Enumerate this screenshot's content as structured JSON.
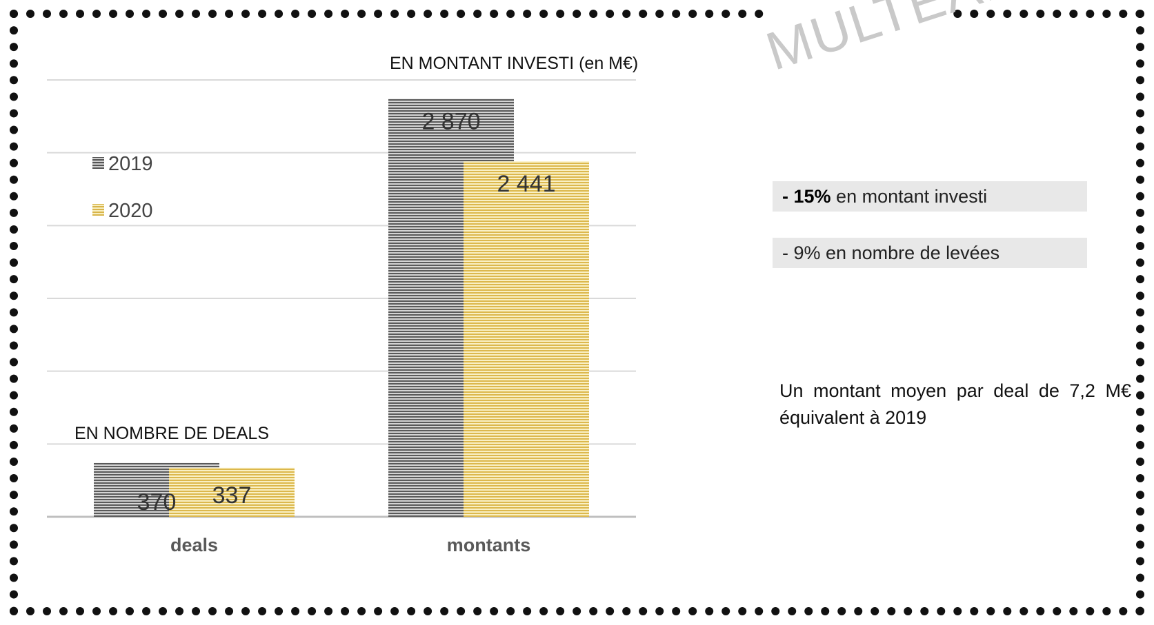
{
  "colors": {
    "series_2019": "#7d7d7d",
    "series_2020": "#f2d27a",
    "frame": "#111111",
    "kpi_bg": "#e8e8e8",
    "watermark": "#c9c9c9"
  },
  "watermark": "MULTEAMSC",
  "kpis": [
    {
      "bold": "- 15%",
      "text": " en montant investi"
    },
    {
      "bold": "",
      "text": "- 9% en nombre de levées"
    }
  ],
  "note": "Un montant moyen par deal de 7,2 M€ équivalent à 2019",
  "chart_data": [
    {
      "type": "bar",
      "title": "EN NOMBRE DE DEALS",
      "categories": [
        "deals"
      ],
      "series": [
        {
          "name": "2019",
          "values": [
            370
          ],
          "labels": [
            "370"
          ]
        },
        {
          "name": "2020",
          "values": [
            337
          ],
          "labels": [
            "337"
          ]
        }
      ],
      "ylim": [
        0,
        3000
      ],
      "grid": true,
      "legend": "left"
    },
    {
      "type": "bar",
      "title": "EN MONTANT INVESTI (en M€)",
      "categories": [
        "montants"
      ],
      "series": [
        {
          "name": "2019",
          "values": [
            2870
          ],
          "labels": [
            "2 870"
          ]
        },
        {
          "name": "2020",
          "values": [
            2441
          ],
          "labels": [
            "2 441"
          ]
        }
      ],
      "ylim": [
        0,
        3000
      ],
      "grid": true,
      "legend": "left"
    }
  ]
}
